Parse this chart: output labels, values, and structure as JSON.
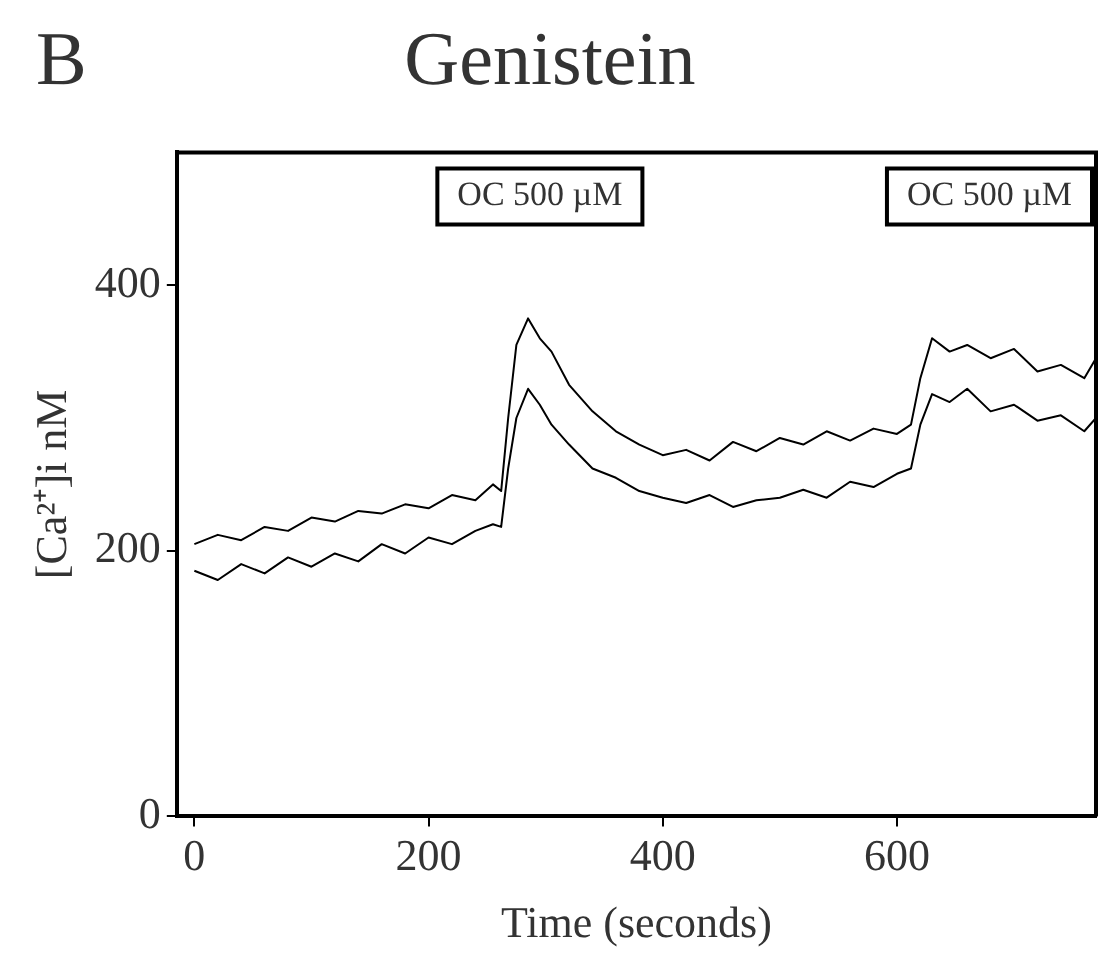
{
  "chart_data": {
    "type": "line",
    "title": "Genistein",
    "xlabel": "Time (seconds)",
    "ylabel": "[Ca²⁺]i nM",
    "annotations": [
      "B",
      "OC 500 µM",
      "OC 500 µM"
    ],
    "xlim": [
      -15,
      770
    ],
    "xticks": [
      0,
      200,
      400,
      600
    ],
    "ylim": [
      0,
      500
    ],
    "yticks": [
      0,
      200,
      400
    ],
    "grid": false,
    "legend": false,
    "marker": "none",
    "line_style": "solid",
    "series": [
      {
        "color": "#000000",
        "x": [
          0,
          20,
          40,
          60,
          80,
          100,
          120,
          140,
          160,
          180,
          200,
          220,
          240,
          255,
          262,
          268,
          275,
          285,
          295,
          305,
          320,
          340,
          360,
          380,
          400,
          420,
          440,
          460,
          480,
          500,
          520,
          540,
          560,
          580,
          600,
          612,
          620,
          630,
          645,
          660,
          680,
          700,
          720,
          740,
          760,
          770
        ],
        "values": [
          205,
          212,
          208,
          218,
          215,
          225,
          222,
          230,
          228,
          235,
          232,
          242,
          238,
          250,
          245,
          300,
          355,
          375,
          360,
          350,
          325,
          305,
          290,
          280,
          272,
          276,
          268,
          282,
          275,
          285,
          280,
          290,
          283,
          292,
          288,
          295,
          330,
          360,
          350,
          355,
          345,
          352,
          335,
          340,
          330,
          345
        ]
      },
      {
        "color": "#000000",
        "x": [
          0,
          20,
          40,
          60,
          80,
          100,
          120,
          140,
          160,
          180,
          200,
          220,
          240,
          255,
          262,
          268,
          275,
          285,
          295,
          305,
          320,
          340,
          360,
          380,
          400,
          420,
          440,
          460,
          480,
          500,
          520,
          540,
          560,
          580,
          600,
          612,
          620,
          630,
          645,
          660,
          680,
          700,
          720,
          740,
          760,
          770
        ],
        "values": [
          185,
          178,
          190,
          183,
          195,
          188,
          198,
          192,
          205,
          198,
          210,
          205,
          215,
          220,
          218,
          262,
          300,
          322,
          310,
          295,
          280,
          262,
          255,
          245,
          240,
          236,
          242,
          233,
          238,
          240,
          246,
          240,
          252,
          248,
          258,
          262,
          295,
          318,
          312,
          322,
          305,
          310,
          298,
          302,
          290,
          300
        ]
      }
    ]
  }
}
